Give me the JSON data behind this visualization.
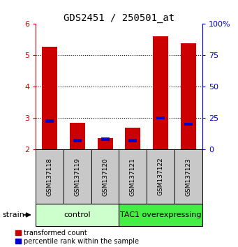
{
  "title": "GDS2451 / 250501_at",
  "samples": [
    "GSM137118",
    "GSM137119",
    "GSM137120",
    "GSM137121",
    "GSM137122",
    "GSM137123"
  ],
  "red_values": [
    5.25,
    2.85,
    2.35,
    2.7,
    5.6,
    5.38
  ],
  "blue_values": [
    2.9,
    2.28,
    2.32,
    2.28,
    3.0,
    2.8
  ],
  "ylim_left": [
    2,
    6
  ],
  "ylim_right": [
    0,
    100
  ],
  "yticks_left": [
    2,
    3,
    4,
    5,
    6
  ],
  "yticks_right": [
    0,
    25,
    50,
    75,
    100
  ],
  "ytick_labels_right": [
    "0",
    "25",
    "50",
    "75",
    "100%"
  ],
  "bar_bottom": 2.0,
  "groups": [
    {
      "label": "control",
      "start": 0,
      "end": 3,
      "color": "#ccffcc"
    },
    {
      "label": "TAC1 overexpressing",
      "start": 3,
      "end": 6,
      "color": "#44ee44"
    }
  ],
  "strain_label": "strain",
  "legend_red": "transformed count",
  "legend_blue": "percentile rank within the sample",
  "red_color": "#cc0000",
  "blue_color": "#0000cc",
  "bar_width": 0.55,
  "blue_bar_width": 0.3,
  "blue_bar_height": 0.1,
  "tick_label_color_left": "#cc0000",
  "tick_label_color_right": "#0000cc",
  "sample_area_color": "#c8c8c8"
}
